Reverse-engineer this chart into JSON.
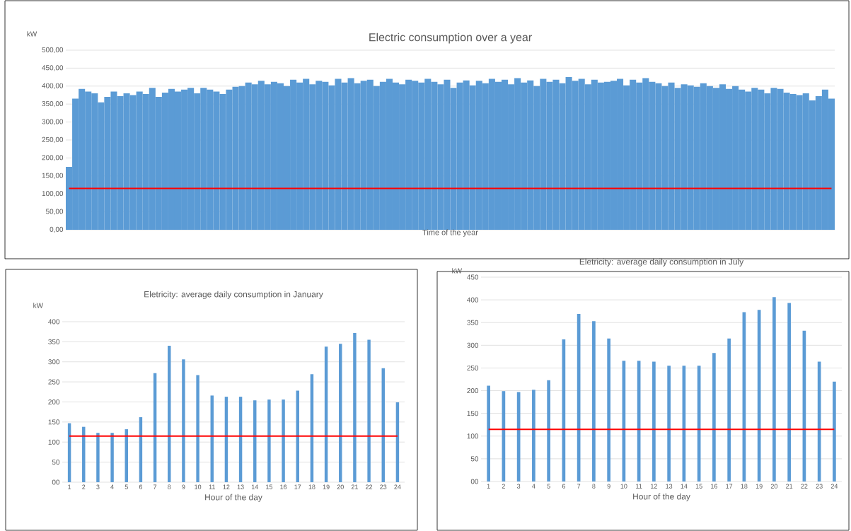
{
  "chart_data": [
    {
      "type": "bar",
      "title": "Electric consumption over a year",
      "xlabel": "Time of the year",
      "ylabel": "kW",
      "color": "#5b9bd5",
      "tick_labels": "y",
      "grid": "y",
      "categories": [
        null,
        null,
        null,
        null,
        null,
        null,
        null,
        null,
        null,
        null,
        null,
        null,
        null,
        null,
        null,
        null,
        null,
        null,
        null,
        null,
        null,
        null,
        null,
        null,
        null,
        null,
        null,
        null,
        null,
        null,
        null,
        null,
        null,
        null,
        null,
        null,
        null,
        null,
        null,
        null,
        null,
        null,
        null,
        null,
        null,
        null,
        null,
        null,
        null,
        null,
        null,
        null,
        null,
        null,
        null,
        null,
        null,
        null,
        null,
        null,
        null,
        null,
        null,
        null,
        null,
        null,
        null,
        null,
        null,
        null,
        null,
        null,
        null,
        null,
        null,
        null,
        null,
        null,
        null,
        null,
        null,
        null,
        null,
        null,
        null,
        null,
        null,
        null,
        null,
        null,
        null,
        null,
        null,
        null,
        null,
        null,
        null,
        null,
        null,
        null,
        null,
        null,
        null,
        null,
        null,
        null,
        null,
        null,
        null,
        null,
        null,
        null,
        null,
        null,
        null,
        null,
        null,
        null,
        null,
        null
      ],
      "values": [
        175,
        365,
        392,
        385,
        380,
        355,
        370,
        385,
        372,
        380,
        375,
        385,
        378,
        395,
        370,
        382,
        392,
        385,
        390,
        395,
        380,
        395,
        390,
        385,
        378,
        390,
        398,
        400,
        410,
        405,
        415,
        405,
        412,
        408,
        400,
        418,
        410,
        420,
        405,
        415,
        412,
        402,
        420,
        410,
        422,
        408,
        415,
        418,
        400,
        412,
        420,
        410,
        405,
        418,
        415,
        410,
        420,
        412,
        405,
        418,
        395,
        410,
        416,
        402,
        415,
        408,
        420,
        412,
        418,
        405,
        422,
        410,
        416,
        400,
        420,
        412,
        418,
        408,
        425,
        415,
        420,
        405,
        418,
        410,
        412,
        415,
        420,
        402,
        418,
        410,
        422,
        412,
        408,
        400,
        410,
        395,
        405,
        402,
        398,
        408,
        400,
        395,
        405,
        392,
        400,
        390,
        385,
        395,
        390,
        380,
        395,
        392,
        382,
        378,
        375,
        380,
        360,
        372,
        390,
        365
      ],
      "ylim": [
        0,
        500
      ],
      "yticks": [
        {
          "value": 0,
          "label": "0,00"
        },
        {
          "value": 50,
          "label": "50,00"
        },
        {
          "value": 100,
          "label": "100,00"
        },
        {
          "value": 150,
          "label": "150,00"
        },
        {
          "value": 200,
          "label": "200,00"
        },
        {
          "value": 250,
          "label": "250,00"
        },
        {
          "value": 300,
          "label": "300,00"
        },
        {
          "value": 350,
          "label": "350,00"
        },
        {
          "value": 400,
          "label": "400,00"
        },
        {
          "value": 450,
          "label": "450,00"
        },
        {
          "value": 500,
          "label": "500,00"
        }
      ],
      "ref_lines": [
        {
          "axis": "y",
          "value": 115,
          "color": "#ff0000"
        }
      ]
    },
    {
      "type": "bar",
      "title": "Eletricity: average daily consumption in January",
      "xlabel": "Hour of the day",
      "ylabel": "kW",
      "color": "#5b9bd5",
      "grid": "y",
      "categories": [
        "1",
        "2",
        "3",
        "4",
        "5",
        "6",
        "7",
        "8",
        "9",
        "10",
        "11",
        "12",
        "13",
        "14",
        "15",
        "16",
        "17",
        "18",
        "19",
        "20",
        "21",
        "22",
        "23",
        "24"
      ],
      "values": [
        147,
        138,
        123,
        123,
        132,
        162,
        272,
        340,
        306,
        267,
        216,
        213,
        213,
        204,
        206,
        206,
        228,
        269,
        338,
        345,
        372,
        355,
        284,
        199
      ],
      "ylim": [
        0,
        400
      ],
      "yticks": [
        {
          "value": 0,
          "label": "00"
        },
        50,
        100,
        150,
        200,
        250,
        300,
        350,
        400
      ],
      "ref_lines": [
        {
          "axis": "y",
          "value": 115,
          "color": "#ff0000"
        }
      ]
    },
    {
      "type": "bar",
      "title": "Eletricity: average daily consumption in July",
      "xlabel": "Hour of the day",
      "ylabel": "kW",
      "color": "#5b9bd5",
      "grid": "y",
      "categories": [
        "1",
        "2",
        "3",
        "4",
        "5",
        "6",
        "7",
        "8",
        "9",
        "10",
        "11",
        "12",
        "13",
        "14",
        "15",
        "16",
        "17",
        "18",
        "19",
        "20",
        "21",
        "22",
        "23",
        "24"
      ],
      "values": [
        211,
        199,
        197,
        202,
        223,
        313,
        369,
        353,
        315,
        266,
        266,
        264,
        255,
        255,
        255,
        283,
        315,
        373,
        378,
        406,
        393,
        332,
        264,
        220
      ],
      "ylim": [
        0,
        450
      ],
      "yticks": [
        {
          "value": 0,
          "label": "00"
        },
        50,
        100,
        150,
        200,
        250,
        300,
        350,
        400,
        450
      ],
      "ref_lines": [
        {
          "axis": "y",
          "value": 115,
          "color": "#ff0000"
        }
      ]
    }
  ]
}
